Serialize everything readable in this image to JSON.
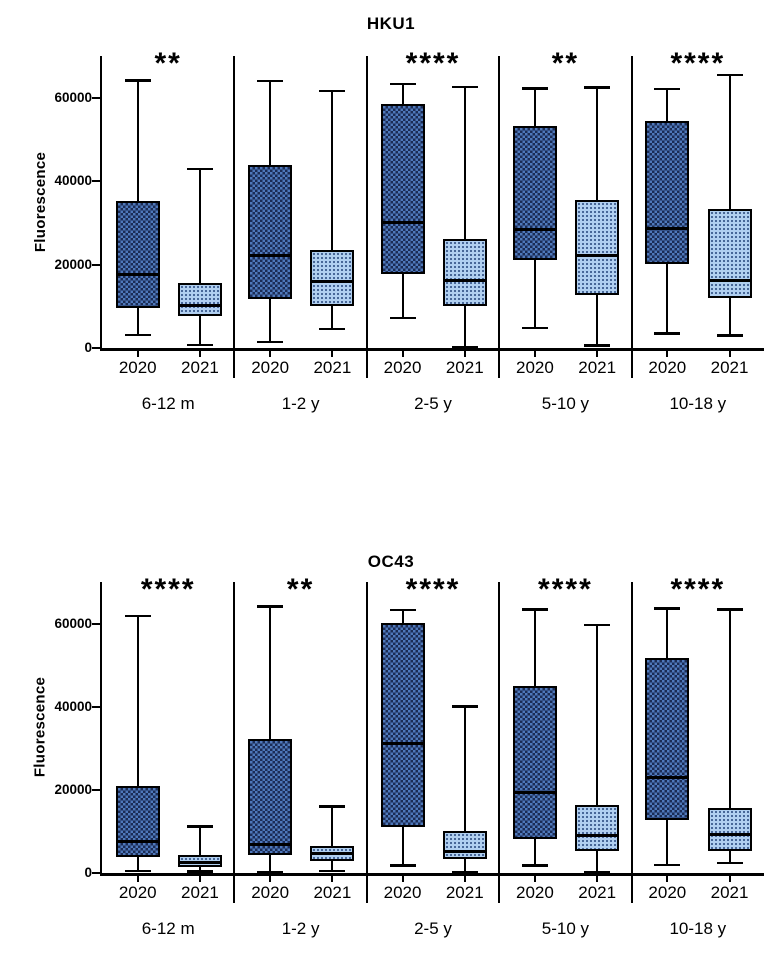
{
  "chart_data": [
    {
      "type": "boxplot",
      "title": "HKU1",
      "ylabel": "Fluorescence",
      "ylim": [
        0,
        70000
      ],
      "yticks": [
        0,
        20000,
        40000,
        60000
      ],
      "series_labels": [
        "2020",
        "2021"
      ],
      "groups": [
        {
          "label": "6-12 m",
          "significance": "**",
          "boxes": [
            {
              "year": "2020",
              "min": 3200,
              "q1": 9500,
              "median": 17800,
              "q3": 35200,
              "max": 64200
            },
            {
              "year": "2021",
              "min": 800,
              "q1": 7600,
              "median": 10400,
              "q3": 15600,
              "max": 43000
            }
          ]
        },
        {
          "label": "1-2 y",
          "significance": "",
          "boxes": [
            {
              "year": "2020",
              "min": 1500,
              "q1": 11800,
              "median": 22300,
              "q3": 43800,
              "max": 64100
            },
            {
              "year": "2021",
              "min": 4600,
              "q1": 10100,
              "median": 16100,
              "q3": 23400,
              "max": 61700
            }
          ]
        },
        {
          "label": "2-5 y",
          "significance": "****",
          "boxes": [
            {
              "year": "2020",
              "min": 7300,
              "q1": 17800,
              "median": 30100,
              "q3": 58600,
              "max": 63300
            },
            {
              "year": "2021",
              "min": 300,
              "q1": 10100,
              "median": 16300,
              "q3": 26100,
              "max": 62600
            }
          ]
        },
        {
          "label": "5-10 y",
          "significance": "**",
          "boxes": [
            {
              "year": "2020",
              "min": 4900,
              "q1": 21000,
              "median": 28600,
              "q3": 53300,
              "max": 62300
            },
            {
              "year": "2021",
              "min": 700,
              "q1": 12700,
              "median": 22300,
              "q3": 35500,
              "max": 62500
            }
          ]
        },
        {
          "label": "10-18 y",
          "significance": "****",
          "boxes": [
            {
              "year": "2020",
              "min": 3500,
              "q1": 20100,
              "median": 28700,
              "q3": 54500,
              "max": 62200
            },
            {
              "year": "2021",
              "min": 3100,
              "q1": 11900,
              "median": 16400,
              "q3": 33300,
              "max": 65500
            }
          ]
        }
      ]
    },
    {
      "type": "boxplot",
      "title": "OC43",
      "ylabel": "Fluorescence",
      "ylim": [
        0,
        70000
      ],
      "yticks": [
        0,
        20000,
        40000,
        60000
      ],
      "series_labels": [
        "2020",
        "2021"
      ],
      "groups": [
        {
          "label": "6-12 m",
          "significance": "****",
          "boxes": [
            {
              "year": "2020",
              "min": 500,
              "q1": 3900,
              "median": 7600,
              "q3": 21000,
              "max": 61900
            },
            {
              "year": "2021",
              "min": 400,
              "q1": 1400,
              "median": 2600,
              "q3": 4300,
              "max": 11300
            }
          ]
        },
        {
          "label": "1-2 y",
          "significance": "**",
          "boxes": [
            {
              "year": "2020",
              "min": 300,
              "q1": 4300,
              "median": 6900,
              "q3": 32300,
              "max": 64200
            },
            {
              "year": "2021",
              "min": 500,
              "q1": 2900,
              "median": 4900,
              "q3": 6600,
              "max": 16100
            }
          ]
        },
        {
          "label": "2-5 y",
          "significance": "****",
          "boxes": [
            {
              "year": "2020",
              "min": 1900,
              "q1": 11000,
              "median": 31200,
              "q3": 60100,
              "max": 63300
            },
            {
              "year": "2021",
              "min": 200,
              "q1": 3300,
              "median": 5200,
              "q3": 10100,
              "max": 40100
            }
          ]
        },
        {
          "label": "5-10 y",
          "significance": "****",
          "boxes": [
            {
              "year": "2020",
              "min": 1900,
              "q1": 8100,
              "median": 19400,
              "q3": 45100,
              "max": 63400
            },
            {
              "year": "2021",
              "min": 200,
              "q1": 5300,
              "median": 9100,
              "q3": 16300,
              "max": 59700
            }
          ]
        },
        {
          "label": "10-18 y",
          "significance": "****",
          "boxes": [
            {
              "year": "2020",
              "min": 2000,
              "q1": 12800,
              "median": 23200,
              "q3": 51800,
              "max": 63700
            },
            {
              "year": "2021",
              "min": 2500,
              "q1": 5400,
              "median": 9500,
              "q3": 15600,
              "max": 63400
            }
          ]
        }
      ]
    }
  ],
  "colors": {
    "axis": "#000000",
    "box_2020_base": "#4f79bb",
    "box_2020_check": "#1b2c55",
    "box_2021_base": "#b0cff0",
    "box_2021_dot": "#2a4a7f"
  }
}
